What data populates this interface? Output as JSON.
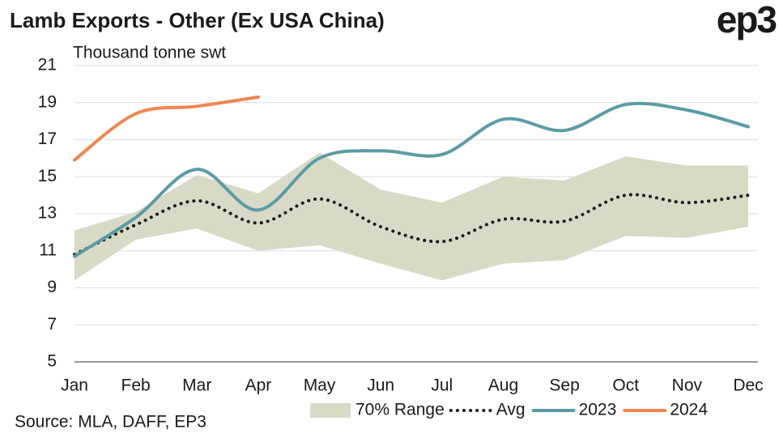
{
  "chart_data": {
    "type": "line",
    "title": "Lamb Exports - Other (Ex USA China)",
    "logo": "ep3",
    "y_label": "Thousand tonne swt",
    "source": "Source: MLA, DAFF, EP3",
    "categories": [
      "Jan",
      "Feb",
      "Mar",
      "Apr",
      "May",
      "Jun",
      "Jul",
      "Aug",
      "Sep",
      "Oct",
      "Nov",
      "Dec"
    ],
    "ylim": [
      5,
      21
    ],
    "yticks": [
      5,
      7,
      9,
      11,
      13,
      15,
      17,
      19,
      21
    ],
    "grid": true,
    "legend": "bottom",
    "range": {
      "name": "70% Range",
      "color": "#d9dac6",
      "upper": [
        12.1,
        13.1,
        15.1,
        14.1,
        16.3,
        14.3,
        13.6,
        15.0,
        14.8,
        16.1,
        15.6,
        15.6
      ],
      "lower": [
        9.4,
        11.6,
        12.2,
        11.0,
        11.3,
        10.3,
        9.4,
        10.3,
        10.5,
        11.8,
        11.7,
        12.3
      ]
    },
    "series": [
      {
        "name": "Avg",
        "color": "#1a1a1a",
        "dotted": true,
        "values": [
          10.8,
          12.4,
          13.7,
          12.5,
          13.8,
          12.3,
          11.5,
          12.7,
          12.6,
          14.0,
          13.6,
          14.0
        ]
      },
      {
        "name": "2023",
        "color": "#5b9ba6",
        "values": [
          10.7,
          12.8,
          15.4,
          13.2,
          16.0,
          16.4,
          16.2,
          18.1,
          17.5,
          18.9,
          18.6,
          17.7
        ]
      },
      {
        "name": "2024",
        "color": "#f0864f",
        "values": [
          15.9,
          18.4,
          18.8,
          19.3,
          null,
          null,
          null,
          null,
          null,
          null,
          null,
          null
        ]
      }
    ]
  }
}
